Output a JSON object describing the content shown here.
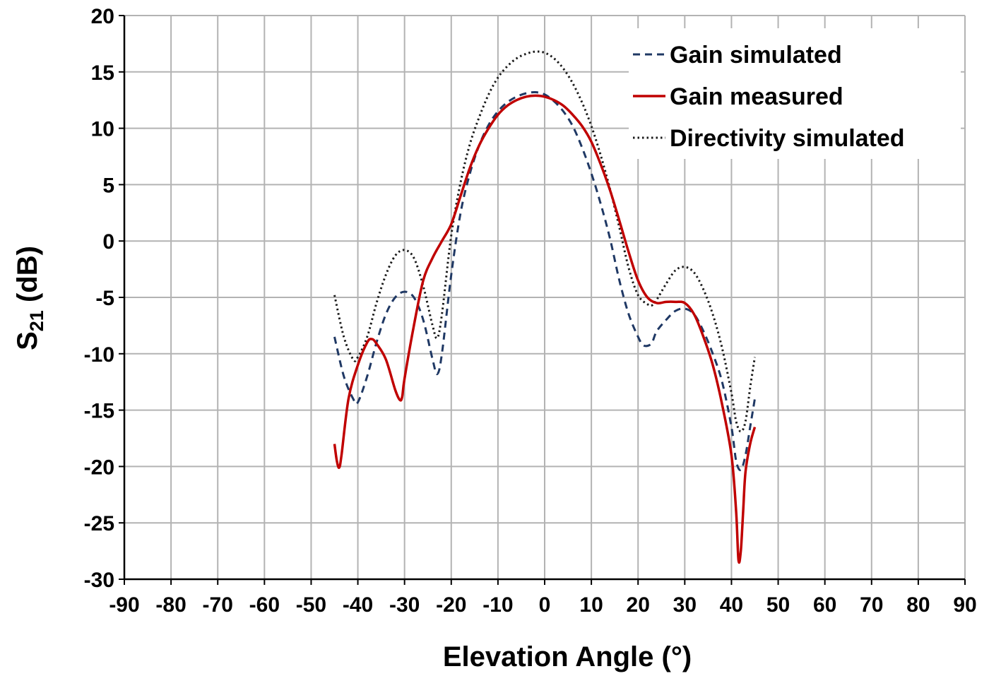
{
  "chart_data": {
    "type": "line",
    "xlabel": "Elevation Angle (°)",
    "ylabel_main": "S",
    "ylabel_sub": "21",
    "ylabel_rest": " (dB)",
    "xlim": [
      -90,
      90
    ],
    "ylim": [
      -30,
      20
    ],
    "xticks": [
      -90,
      -80,
      -70,
      -60,
      -50,
      -40,
      -30,
      -20,
      -10,
      0,
      10,
      20,
      30,
      40,
      50,
      60,
      70,
      80,
      90
    ],
    "yticks": [
      -30,
      -25,
      -20,
      -15,
      -10,
      -5,
      0,
      5,
      10,
      15,
      20
    ],
    "grid": true,
    "legend_position": "top-right",
    "series": [
      {
        "name": "Gain simulated",
        "color": "#1f3864",
        "style": "dashed",
        "x": [
          -45,
          -43,
          -41,
          -40,
          -38,
          -36,
          -34,
          -32,
          -30,
          -28,
          -26,
          -24,
          -23,
          -22,
          -20,
          -18,
          -16,
          -14,
          -12,
          -10,
          -8,
          -6,
          -4,
          -2,
          0,
          2,
          4,
          6,
          8,
          10,
          12,
          14,
          16,
          18,
          20,
          21,
          22,
          23,
          24,
          26,
          28,
          30,
          32,
          34,
          36,
          38,
          40,
          41,
          42,
          43,
          44,
          45
        ],
        "y": [
          -8.5,
          -12,
          -14,
          -14.3,
          -12,
          -9,
          -6.5,
          -5,
          -4.5,
          -5,
          -7,
          -10.5,
          -11.8,
          -10,
          -3,
          2.5,
          6,
          8.5,
          10.3,
          11.5,
          12.3,
          12.8,
          13.1,
          13.2,
          13.0,
          12.4,
          11.5,
          10.2,
          8.3,
          6,
          3.3,
          0.2,
          -3.5,
          -6.5,
          -8.5,
          -9.2,
          -9.3,
          -9,
          -8,
          -7,
          -6.2,
          -6,
          -6.5,
          -8,
          -10,
          -12.5,
          -16.5,
          -19.5,
          -20.3,
          -19,
          -16.5,
          -14
        ]
      },
      {
        "name": "Gain measured",
        "color": "#c00000",
        "style": "solid",
        "x": [
          -45,
          -44.5,
          -44,
          -43.5,
          -42,
          -40,
          -38,
          -37,
          -36,
          -34,
          -32,
          -31,
          -30.5,
          -30,
          -28,
          -26,
          -24,
          -22,
          -20,
          -18,
          -16,
          -14,
          -12,
          -10,
          -8,
          -6,
          -4,
          -2,
          0,
          2,
          4,
          6,
          8,
          10,
          12,
          14,
          16,
          18,
          20,
          22,
          24,
          26,
          28,
          30,
          32,
          34,
          36,
          38,
          40,
          41,
          41.5,
          42,
          42.5,
          43,
          44,
          45
        ],
        "y": [
          -18,
          -19.5,
          -20.1,
          -19,
          -14,
          -11,
          -9,
          -8.7,
          -9.1,
          -10.5,
          -13.2,
          -14.1,
          -13.8,
          -12.2,
          -7.5,
          -3.5,
          -1.5,
          0,
          1.5,
          4,
          6.5,
          8.5,
          10,
          11.2,
          12,
          12.5,
          12.8,
          12.9,
          12.8,
          12.5,
          12,
          11.2,
          10.2,
          8.8,
          6.8,
          4.5,
          1.8,
          -1,
          -3.5,
          -5,
          -5.5,
          -5.4,
          -5.4,
          -5.5,
          -6.5,
          -8.5,
          -11,
          -14.5,
          -19,
          -24,
          -28.3,
          -27.5,
          -24,
          -20.5,
          -18,
          -16.5
        ]
      },
      {
        "name": "Directivity simulated",
        "color": "#1a1a1a",
        "style": "dotted",
        "x": [
          -45,
          -43,
          -41,
          -40,
          -38,
          -36,
          -34,
          -32,
          -30,
          -28,
          -26,
          -24,
          -23,
          -22,
          -20,
          -18,
          -16,
          -14,
          -12,
          -10,
          -8,
          -6,
          -4,
          -2,
          0,
          2,
          4,
          6,
          8,
          10,
          12,
          14,
          16,
          18,
          20,
          22,
          23,
          24,
          26,
          28,
          30,
          32,
          34,
          36,
          38,
          40,
          41,
          42,
          43,
          44,
          45
        ],
        "y": [
          -4.8,
          -8.5,
          -10.5,
          -10.3,
          -8.5,
          -5.5,
          -3,
          -1.3,
          -0.8,
          -1.5,
          -4,
          -7.5,
          -8.6,
          -6.5,
          0.5,
          5.2,
          8.6,
          11,
          13,
          14.5,
          15.5,
          16.2,
          16.6,
          16.8,
          16.7,
          16.2,
          15.3,
          14,
          12.3,
          10.2,
          7.6,
          4.6,
          1.2,
          -2.4,
          -4.8,
          -5.6,
          -5.7,
          -5.2,
          -3.8,
          -2.6,
          -2.3,
          -2.8,
          -4.3,
          -6.5,
          -9.5,
          -13.5,
          -16,
          -16.9,
          -16,
          -13,
          -10.3
        ]
      }
    ]
  }
}
